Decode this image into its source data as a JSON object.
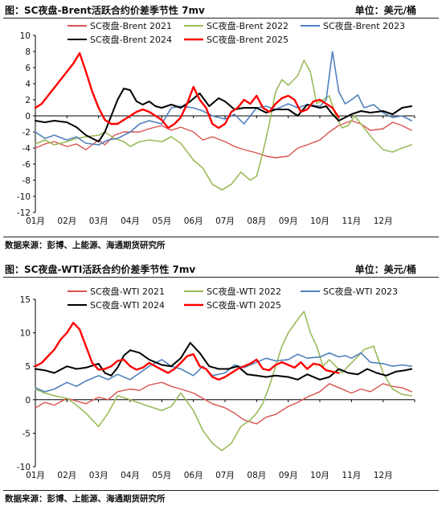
{
  "chart_data": [
    {
      "type": "line",
      "title": "图：SC夜盘-Brent活跃合约价差季节性 7mv",
      "unit": "单位：美元/桶",
      "source": "数据来源：彭博、上能源、海通期货研究所",
      "ylim": [
        -12,
        10
      ],
      "yticks": [
        -12,
        -10,
        -8,
        -6,
        -4,
        -2,
        0,
        2,
        4,
        6,
        8,
        10
      ],
      "xlabels": [
        "01月",
        "02月",
        "03月",
        "04月",
        "05月",
        "06月",
        "07月",
        "08月",
        "09月",
        "10月",
        "11月",
        "12月"
      ],
      "grid": false,
      "legend_position": "top",
      "series": [
        {
          "name": "SC夜盘-Brent 2021",
          "color": "#d9534f",
          "width": 1.4,
          "x": [
            0,
            0.3,
            0.6,
            1.0,
            1.3,
            1.6,
            2.0,
            2.2,
            2.5,
            2.8,
            3.0,
            3.3,
            3.6,
            4.0,
            4.3,
            4.6,
            5.0,
            5.3,
            5.6,
            6.0,
            6.3,
            6.6,
            7.0,
            7.3,
            7.6,
            8.0,
            8.3,
            8.6,
            9.0,
            9.3,
            9.6,
            10.0,
            10.3,
            10.6,
            11.0,
            11.3,
            11.6,
            11.9
          ],
          "y": [
            -4.0,
            -3.5,
            -3.2,
            -3.8,
            -3.5,
            -4.2,
            -3.0,
            -3.6,
            -2.4,
            -2.0,
            -2.0,
            -2.0,
            -1.6,
            -1.2,
            -1.8,
            -1.4,
            -2.0,
            -3.0,
            -2.6,
            -3.2,
            -3.8,
            -4.2,
            -4.6,
            -5.0,
            -5.2,
            -5.0,
            -4.0,
            -3.6,
            -3.0,
            -2.0,
            -1.2,
            -0.6,
            -1.0,
            -1.8,
            -1.6,
            -0.8,
            -1.2,
            -1.8
          ]
        },
        {
          "name": "SC夜盘-Brent 2022",
          "color": "#9bbb59",
          "width": 1.6,
          "x": [
            0,
            0.3,
            0.6,
            1.0,
            1.3,
            1.6,
            2.0,
            2.2,
            2.5,
            2.8,
            3.0,
            3.3,
            3.6,
            4.0,
            4.3,
            4.6,
            5.0,
            5.3,
            5.6,
            5.9,
            6.2,
            6.5,
            6.8,
            7.0,
            7.2,
            7.4,
            7.6,
            7.8,
            8.0,
            8.3,
            8.5,
            8.7,
            8.9,
            9.1,
            9.3,
            9.5,
            9.7,
            9.9,
            10.1,
            10.4,
            10.7,
            11.0,
            11.3,
            11.6,
            11.9
          ],
          "y": [
            -3.5,
            -3.0,
            -3.6,
            -3.2,
            -2.8,
            -2.6,
            -2.4,
            -2.0,
            -2.8,
            -3.2,
            -3.8,
            -3.2,
            -3.0,
            -3.2,
            -2.6,
            -3.4,
            -5.5,
            -6.5,
            -8.5,
            -9.2,
            -8.5,
            -7.0,
            -8.0,
            -7.5,
            -4.5,
            -1.0,
            3.0,
            4.5,
            3.8,
            5.0,
            6.9,
            5.5,
            1.5,
            2.0,
            2.5,
            0.0,
            -1.5,
            -1.2,
            0.0,
            -1.5,
            -3.0,
            -4.2,
            -4.5,
            -4.0,
            -3.6
          ]
        },
        {
          "name": "SC夜盘-Brent 2023",
          "color": "#4f81bd",
          "width": 1.6,
          "x": [
            0,
            0.3,
            0.6,
            1.0,
            1.3,
            1.6,
            2.0,
            2.3,
            2.6,
            3.0,
            3.3,
            3.6,
            4.0,
            4.3,
            4.6,
            5.0,
            5.3,
            5.6,
            6.0,
            6.3,
            6.6,
            7.0,
            7.3,
            7.6,
            8.0,
            8.3,
            8.6,
            9.0,
            9.2,
            9.4,
            9.6,
            9.8,
            10.0,
            10.2,
            10.4,
            10.7,
            11.0,
            11.3,
            11.6,
            11.9
          ],
          "y": [
            -2.0,
            -2.8,
            -2.4,
            -3.0,
            -2.6,
            -3.4,
            -3.6,
            -3.0,
            -2.8,
            -2.0,
            -1.0,
            -0.6,
            -1.0,
            1.0,
            1.2,
            1.0,
            0.6,
            0.0,
            -0.4,
            0.2,
            -1.0,
            1.0,
            1.2,
            0.8,
            1.5,
            1.0,
            1.4,
            1.2,
            2.0,
            8.0,
            3.0,
            1.5,
            2.0,
            2.6,
            1.0,
            1.4,
            0.4,
            -0.2,
            0.0,
            -0.6
          ]
        },
        {
          "name": "SC夜盘-Brent 2024",
          "color": "#000000",
          "width": 2.0,
          "x": [
            0,
            0.3,
            0.6,
            1.0,
            1.3,
            1.6,
            2.0,
            2.2,
            2.4,
            2.6,
            2.8,
            3.0,
            3.2,
            3.4,
            3.6,
            3.8,
            4.0,
            4.3,
            4.6,
            4.9,
            5.2,
            5.5,
            5.8,
            6.0,
            6.3,
            6.6,
            7.0,
            7.3,
            7.6,
            8.0,
            8.3,
            8.6,
            9.0,
            9.2,
            9.4,
            9.6,
            9.8,
            10.0,
            10.3,
            10.6,
            11.0,
            11.3,
            11.6,
            11.9
          ],
          "y": [
            -0.6,
            -0.8,
            -0.6,
            -0.8,
            -1.4,
            -2.4,
            -3.2,
            -2.0,
            0.0,
            2.0,
            3.4,
            3.2,
            1.8,
            1.4,
            1.8,
            1.2,
            1.0,
            1.4,
            1.0,
            1.8,
            2.8,
            1.2,
            2.2,
            1.8,
            0.8,
            1.0,
            1.0,
            0.4,
            0.8,
            0.8,
            0.0,
            1.4,
            1.0,
            1.2,
            0.2,
            -0.6,
            -0.2,
            0.2,
            0.6,
            0.4,
            0.6,
            0.2,
            1.0,
            1.2
          ]
        },
        {
          "name": "SC夜盘-Brent 2025",
          "color": "#ff0000",
          "width": 2.4,
          "x": [
            0,
            0.2,
            0.4,
            0.6,
            0.8,
            1.0,
            1.2,
            1.4,
            1.6,
            1.8,
            2.0,
            2.2,
            2.4,
            2.6,
            2.8,
            3.0,
            3.2,
            3.4,
            3.6,
            3.8,
            4.0,
            4.2,
            4.4,
            4.6,
            4.8,
            5.0,
            5.2,
            5.4,
            5.6,
            5.8,
            6.0,
            6.2,
            6.4,
            6.6,
            6.8,
            7.0,
            7.2,
            7.4,
            7.6,
            7.8,
            8.0,
            8.2,
            8.4,
            8.6,
            8.8,
            9.0,
            9.2,
            9.4,
            9.6
          ],
          "y": [
            1.0,
            1.5,
            2.5,
            3.5,
            4.5,
            5.5,
            6.5,
            7.8,
            5.5,
            3.0,
            1.0,
            -0.5,
            -1.0,
            -1.0,
            -0.5,
            0.0,
            0.5,
            0.8,
            0.5,
            0.0,
            -0.5,
            -1.5,
            -1.0,
            -0.2,
            1.5,
            3.6,
            2.0,
            1.0,
            -1.0,
            -1.5,
            -1.0,
            0.5,
            1.0,
            2.0,
            1.5,
            2.5,
            1.0,
            0.5,
            1.5,
            2.2,
            2.5,
            2.0,
            0.5,
            0.8,
            1.8,
            2.0,
            1.5,
            1.0,
            -0.2
          ]
        }
      ]
    },
    {
      "type": "line",
      "title": "图：SC夜盘-WTI活跃合约价差季节性 7mv",
      "unit": "单位：美元/桶",
      "source": "数据来源：彭博、上能源、海通期货研究所",
      "ylim": [
        -10,
        15
      ],
      "yticks": [
        -10,
        -5,
        0,
        5,
        10,
        15
      ],
      "xlabels": [
        "01月",
        "02月",
        "03月",
        "04月",
        "05月",
        "06月",
        "07月",
        "08月",
        "09月",
        "10月",
        "11月",
        "12月"
      ],
      "grid": false,
      "legend_position": "top",
      "series": [
        {
          "name": "SC夜盘-WTI 2021",
          "color": "#d9534f",
          "width": 1.4,
          "x": [
            0,
            0.3,
            0.6,
            1.0,
            1.3,
            1.6,
            2.0,
            2.3,
            2.6,
            3.0,
            3.3,
            3.6,
            4.0,
            4.3,
            4.6,
            5.0,
            5.3,
            5.6,
            6.0,
            6.3,
            6.6,
            7.0,
            7.3,
            7.6,
            8.0,
            8.3,
            8.6,
            9.0,
            9.3,
            9.6,
            10.0,
            10.3,
            10.6,
            11.0,
            11.3,
            11.6,
            11.9
          ],
          "y": [
            -1.2,
            -0.4,
            -0.8,
            0.2,
            -0.2,
            -0.6,
            0.4,
            0.0,
            1.2,
            1.6,
            1.4,
            2.2,
            2.6,
            2.0,
            1.6,
            1.0,
            0.2,
            -0.6,
            -1.2,
            -2.0,
            -3.0,
            -3.6,
            -2.6,
            -2.2,
            -1.0,
            -0.4,
            0.4,
            1.2,
            2.4,
            1.8,
            1.0,
            1.6,
            1.2,
            2.4,
            2.0,
            1.8,
            1.2
          ]
        },
        {
          "name": "SC夜盘-WTI 2022",
          "color": "#9bbb59",
          "width": 1.6,
          "x": [
            0,
            0.3,
            0.6,
            1.0,
            1.3,
            1.6,
            2.0,
            2.3,
            2.6,
            3.0,
            3.3,
            3.6,
            4.0,
            4.3,
            4.6,
            5.0,
            5.3,
            5.6,
            5.9,
            6.2,
            6.5,
            6.8,
            7.0,
            7.2,
            7.4,
            7.6,
            7.8,
            8.0,
            8.3,
            8.5,
            8.7,
            8.9,
            9.1,
            9.3,
            9.5,
            9.7,
            9.9,
            10.1,
            10.4,
            10.7,
            11.0,
            11.3,
            11.6,
            11.9
          ],
          "y": [
            1.6,
            1.0,
            0.6,
            0.2,
            -0.8,
            -2.0,
            -4.0,
            -2.0,
            0.6,
            0.0,
            -0.5,
            -1.0,
            -1.6,
            -1.0,
            1.0,
            -1.6,
            -4.6,
            -6.5,
            -7.6,
            -6.5,
            -4.0,
            -3.0,
            -2.0,
            -0.5,
            2.0,
            5.0,
            8.0,
            10.0,
            12.0,
            13.2,
            10.0,
            8.0,
            5.0,
            6.0,
            5.0,
            4.0,
            5.0,
            6.0,
            7.5,
            8.0,
            4.0,
            1.6,
            0.8,
            0.6
          ]
        },
        {
          "name": "SC夜盘-WTI 2023",
          "color": "#4f81bd",
          "width": 1.6,
          "x": [
            0,
            0.3,
            0.6,
            1.0,
            1.3,
            1.6,
            2.0,
            2.3,
            2.6,
            3.0,
            3.3,
            3.6,
            4.0,
            4.3,
            4.6,
            5.0,
            5.3,
            5.6,
            6.0,
            6.3,
            6.6,
            7.0,
            7.3,
            7.6,
            8.0,
            8.3,
            8.6,
            9.0,
            9.3,
            9.6,
            9.8,
            10.0,
            10.3,
            10.6,
            11.0,
            11.3,
            11.6,
            11.9
          ],
          "y": [
            1.8,
            1.2,
            1.6,
            2.6,
            2.0,
            2.8,
            3.6,
            3.0,
            3.8,
            3.0,
            4.0,
            5.0,
            6.0,
            5.0,
            4.6,
            3.6,
            5.0,
            3.6,
            4.0,
            5.2,
            4.8,
            5.6,
            6.2,
            5.8,
            6.0,
            6.8,
            6.2,
            6.4,
            7.0,
            6.4,
            6.6,
            6.2,
            7.0,
            5.6,
            5.4,
            5.0,
            5.2,
            5.0
          ]
        },
        {
          "name": "SC夜盘-WTI 2024",
          "color": "#000000",
          "width": 2.0,
          "x": [
            0,
            0.3,
            0.6,
            1.0,
            1.3,
            1.6,
            2.0,
            2.2,
            2.4,
            2.6,
            2.8,
            3.0,
            3.3,
            3.6,
            4.0,
            4.3,
            4.6,
            4.9,
            5.2,
            5.5,
            5.8,
            6.1,
            6.4,
            6.7,
            7.0,
            7.3,
            7.6,
            8.0,
            8.3,
            8.6,
            9.0,
            9.3,
            9.6,
            9.9,
            10.2,
            10.5,
            10.8,
            11.1,
            11.4,
            11.7,
            11.9
          ],
          "y": [
            4.6,
            4.4,
            4.0,
            5.0,
            4.6,
            4.8,
            5.4,
            4.0,
            3.6,
            4.8,
            6.6,
            7.4,
            7.0,
            6.0,
            5.2,
            5.0,
            6.2,
            8.5,
            7.0,
            5.0,
            4.6,
            4.6,
            5.0,
            3.8,
            3.6,
            3.4,
            3.6,
            3.4,
            3.0,
            3.8,
            3.0,
            3.4,
            4.6,
            4.0,
            3.8,
            4.6,
            4.0,
            3.6,
            4.2,
            4.4,
            4.6
          ]
        },
        {
          "name": "SC夜盘-WTI 2025",
          "color": "#ff0000",
          "width": 2.4,
          "x": [
            0,
            0.2,
            0.4,
            0.6,
            0.8,
            1.0,
            1.2,
            1.4,
            1.6,
            1.8,
            2.0,
            2.2,
            2.4,
            2.6,
            2.8,
            3.0,
            3.2,
            3.4,
            3.6,
            3.8,
            4.0,
            4.2,
            4.4,
            4.6,
            4.8,
            5.0,
            5.2,
            5.4,
            5.6,
            5.8,
            6.0,
            6.2,
            6.4,
            6.6,
            6.8,
            7.0,
            7.2,
            7.4,
            7.6,
            7.8,
            8.0,
            8.2,
            8.4,
            8.6,
            8.8,
            9.0,
            9.2,
            9.4,
            9.6
          ],
          "y": [
            5.0,
            5.5,
            6.5,
            7.5,
            9.0,
            10.0,
            11.5,
            10.5,
            8.0,
            5.5,
            4.5,
            4.6,
            5.0,
            5.8,
            6.0,
            5.0,
            4.5,
            4.8,
            5.5,
            5.0,
            4.5,
            4.0,
            4.6,
            5.5,
            6.5,
            6.8,
            5.0,
            4.6,
            3.4,
            3.0,
            3.4,
            4.0,
            4.6,
            5.0,
            5.4,
            6.0,
            4.6,
            4.4,
            5.2,
            5.6,
            5.2,
            4.8,
            5.6,
            4.6,
            5.4,
            5.2,
            4.4,
            4.2,
            4.0
          ]
        }
      ]
    }
  ]
}
